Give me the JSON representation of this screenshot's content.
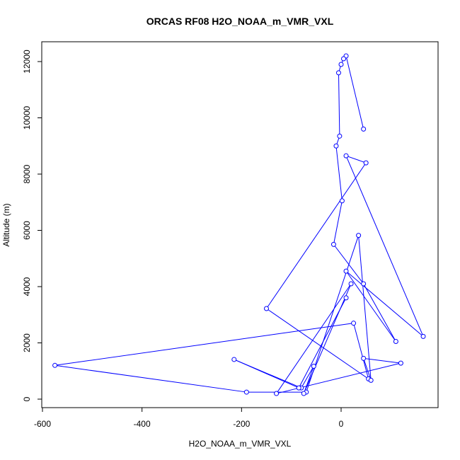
{
  "chart_data": {
    "type": "line",
    "title": "ORCAS RF08 H2O_NOAA_m_VMR_VXL",
    "xlabel": "H2O_NOAA_m_VMR_VXL",
    "ylabel": "Altitude (m)",
    "xlim": [
      -600,
      165
    ],
    "ylim": [
      0,
      12200
    ],
    "xticks": [
      -600,
      -400,
      -200,
      0
    ],
    "yticks": [
      0,
      2000,
      4000,
      6000,
      8000,
      10000,
      12000
    ],
    "series_color": "#0000ff",
    "markers": "open-circle",
    "grid": false,
    "points": [
      {
        "x": 45,
        "y": 9600
      },
      {
        "x": 10,
        "y": 12200
      },
      {
        "x": 5,
        "y": 12100
      },
      {
        "x": 0,
        "y": 11900
      },
      {
        "x": -5,
        "y": 11600
      },
      {
        "x": -3,
        "y": 9350
      },
      {
        "x": -10,
        "y": 9000
      },
      {
        "x": 2,
        "y": 7050
      },
      {
        "x": -15,
        "y": 5500
      },
      {
        "x": 45,
        "y": 4100
      },
      {
        "x": 110,
        "y": 2050
      },
      {
        "x": 10,
        "y": 4550
      },
      {
        "x": 165,
        "y": 2230
      },
      {
        "x": 10,
        "y": 8650
      },
      {
        "x": 50,
        "y": 8400
      },
      {
        "x": -150,
        "y": 3220
      },
      {
        "x": 55,
        "y": 720
      },
      {
        "x": 25,
        "y": 2700
      },
      {
        "x": -575,
        "y": 1200
      },
      {
        "x": -190,
        "y": 250
      },
      {
        "x": -70,
        "y": 250
      },
      {
        "x": 35,
        "y": 5820
      },
      {
        "x": 60,
        "y": 670
      },
      {
        "x": 45,
        "y": 1450
      },
      {
        "x": 120,
        "y": 1280
      },
      {
        "x": -130,
        "y": 200
      },
      {
        "x": 20,
        "y": 4100
      },
      {
        "x": -75,
        "y": 200
      },
      {
        "x": -55,
        "y": 1170
      },
      {
        "x": -80,
        "y": 400
      },
      {
        "x": -215,
        "y": 1410
      },
      {
        "x": -85,
        "y": 400
      },
      {
        "x": 10,
        "y": 3600
      }
    ]
  }
}
